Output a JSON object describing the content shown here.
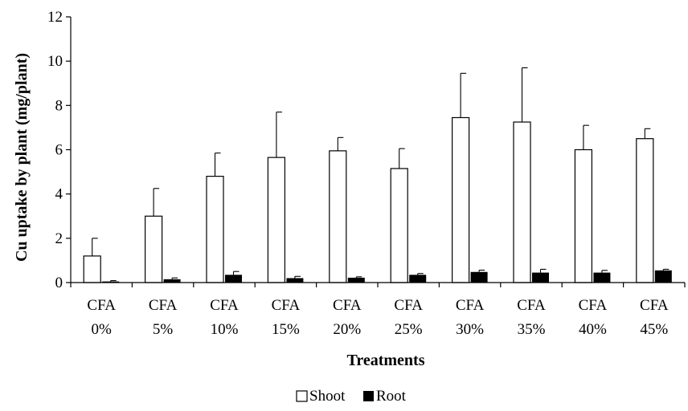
{
  "chart_data": {
    "type": "bar",
    "categories": [
      [
        "CFA",
        "0%"
      ],
      [
        "CFA",
        "5%"
      ],
      [
        "CFA",
        "10%"
      ],
      [
        "CFA",
        "15%"
      ],
      [
        "CFA",
        "20%"
      ],
      [
        "CFA",
        "25%"
      ],
      [
        "CFA",
        "30%"
      ],
      [
        "CFA",
        "35%"
      ],
      [
        "CFA",
        "40%"
      ],
      [
        "CFA",
        "45%"
      ]
    ],
    "series": [
      {
        "name": "Shoot",
        "fill": "#ffffff",
        "values": [
          1.2,
          3.0,
          4.8,
          5.65,
          5.95,
          5.15,
          7.45,
          7.25,
          6.0,
          6.5
        ],
        "error": [
          0.8,
          1.25,
          1.05,
          2.05,
          0.6,
          0.9,
          2.0,
          2.45,
          1.1,
          0.45
        ]
      },
      {
        "name": "Root",
        "fill": "#000000",
        "values": [
          0.05,
          0.15,
          0.35,
          0.2,
          0.22,
          0.35,
          0.48,
          0.45,
          0.45,
          0.55
        ],
        "error": [
          0.04,
          0.06,
          0.15,
          0.08,
          0.04,
          0.06,
          0.08,
          0.15,
          0.1,
          0.05
        ]
      }
    ],
    "xlabel": "Treatments",
    "ylabel": "Cu uptake by plant (mg/plant)",
    "ylim": [
      0,
      12
    ],
    "yticks": [
      "0",
      "2",
      "4",
      "6",
      "8",
      "10",
      "12"
    ],
    "grid": false,
    "legend_position": "bottom"
  }
}
